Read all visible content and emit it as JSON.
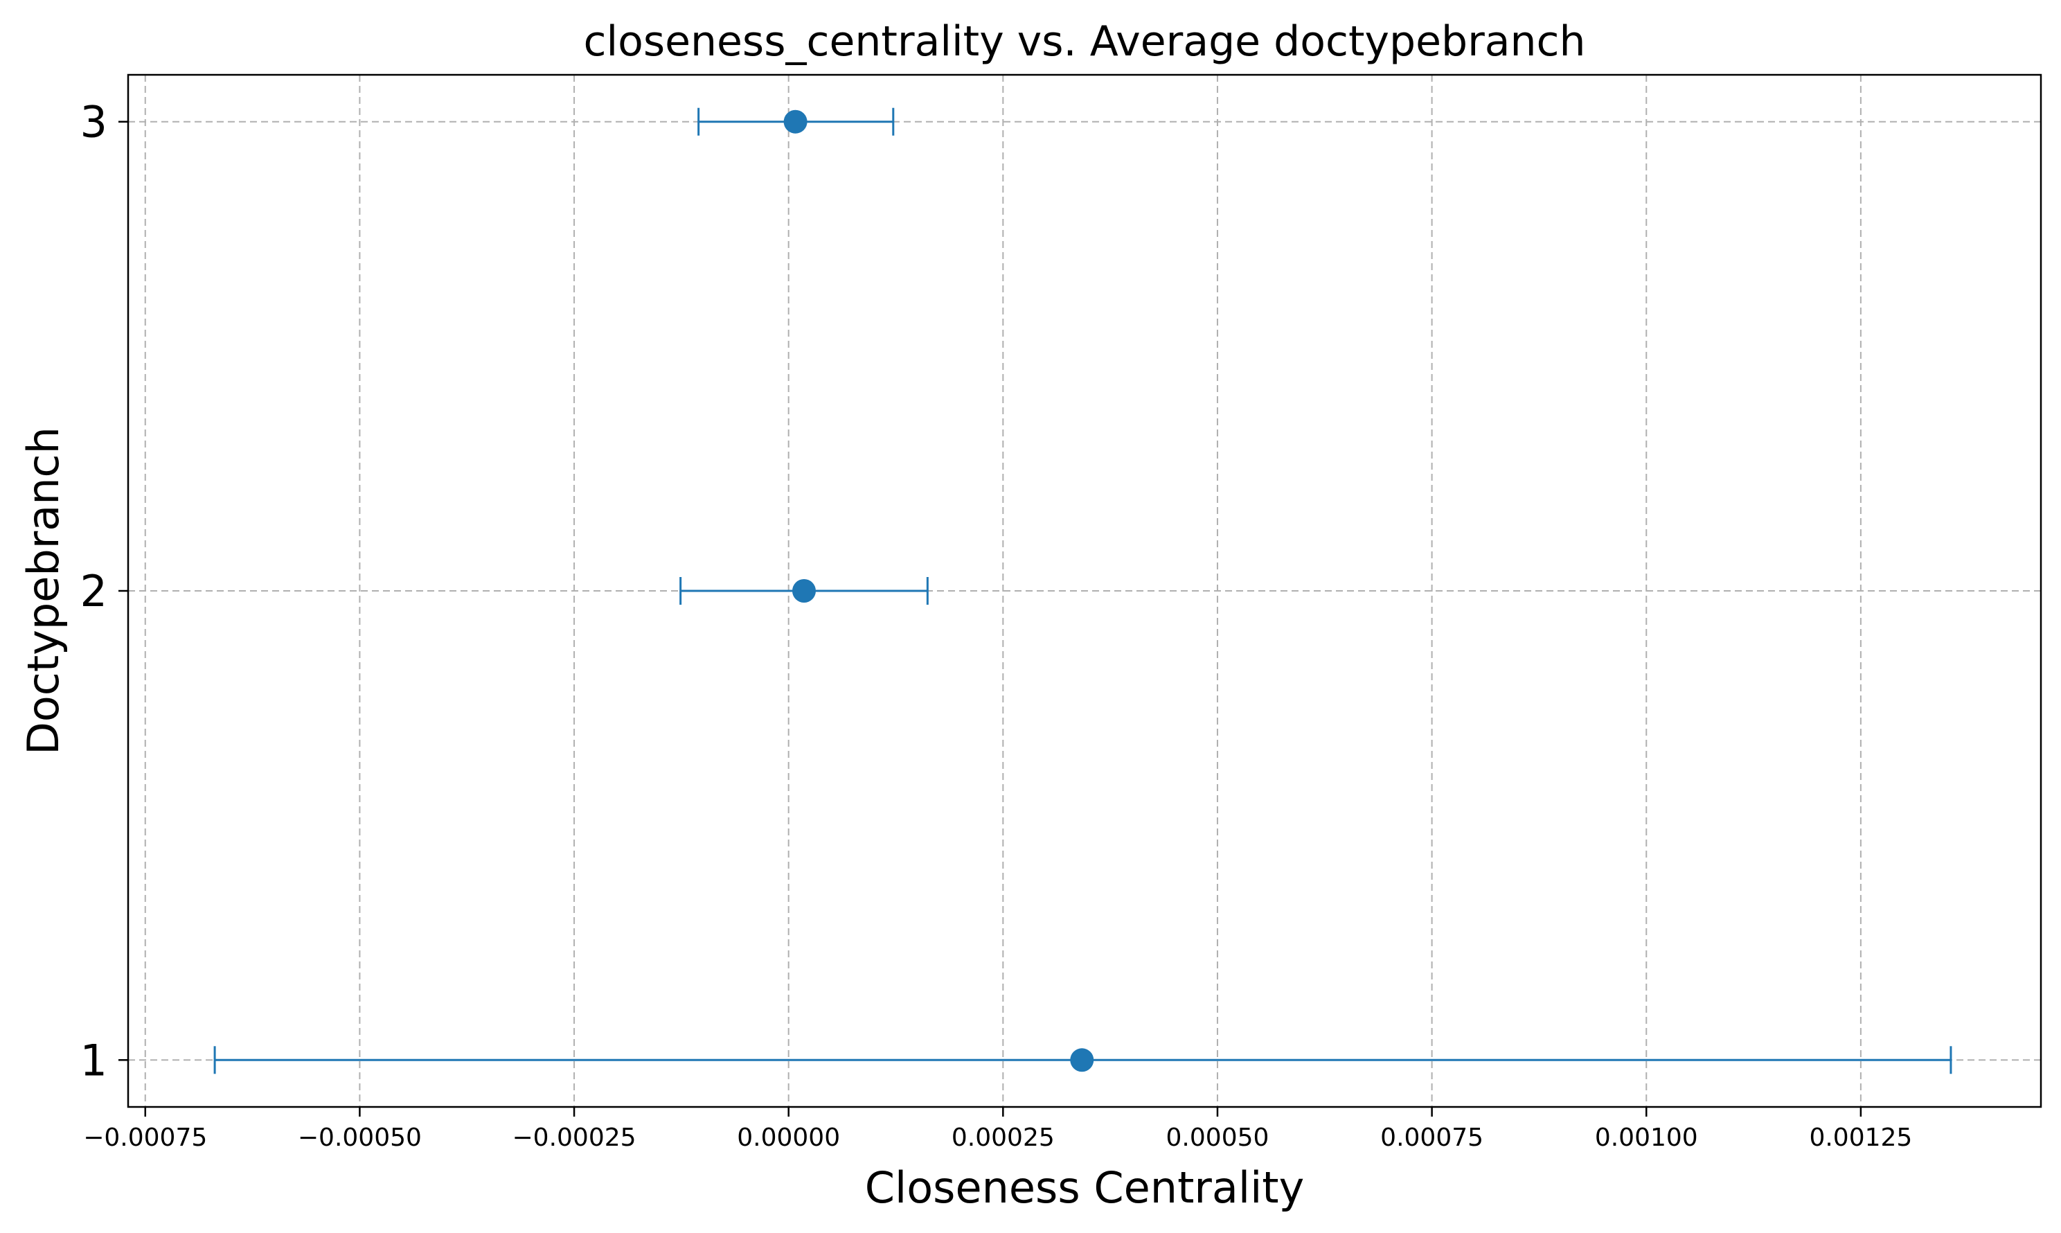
{
  "chart_data": {
    "type": "scatter",
    "title": "closeness_centrality vs. Average doctypebranch",
    "xlabel": "Closeness Centrality",
    "ylabel": "Doctypebranch",
    "xlim": [
      -0.00077,
      0.00146
    ],
    "ylim": [
      0.9,
      3.1
    ],
    "grid": true,
    "marker_color": "#1f77b4",
    "x_ticks": [
      {
        "value": -0.00075,
        "label": "−0.00075"
      },
      {
        "value": -0.0005,
        "label": "−0.00050"
      },
      {
        "value": -0.00025,
        "label": "−0.00025"
      },
      {
        "value": 0.0,
        "label": "0.00000"
      },
      {
        "value": 0.00025,
        "label": "0.00025"
      },
      {
        "value": 0.0005,
        "label": "0.00050"
      },
      {
        "value": 0.00075,
        "label": "0.00075"
      },
      {
        "value": 0.001,
        "label": "0.00100"
      },
      {
        "value": 0.00125,
        "label": "0.00125"
      }
    ],
    "y_ticks": [
      {
        "value": 1,
        "label": "1"
      },
      {
        "value": 2,
        "label": "2"
      },
      {
        "value": 3,
        "label": "3"
      }
    ],
    "points": [
      {
        "y": 1,
        "x": 0.000342,
        "xerr_low": -0.000669,
        "xerr_high": 0.001355
      },
      {
        "y": 2,
        "x": 1.8e-05,
        "xerr_low": -0.000126,
        "xerr_high": 0.000162
      },
      {
        "y": 3,
        "x": 8e-06,
        "xerr_low": -0.000105,
        "xerr_high": 0.000122
      }
    ]
  }
}
